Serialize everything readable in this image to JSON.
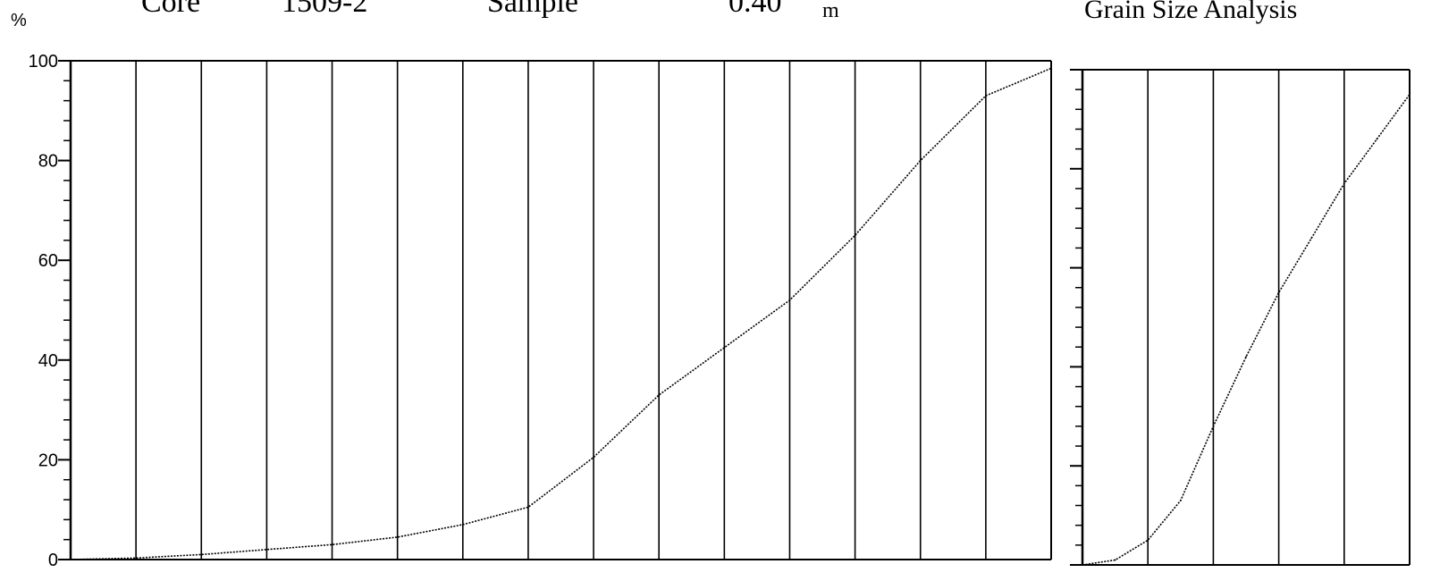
{
  "header": {
    "core_label": "Core",
    "core_value": "1509-2",
    "sample_label": "Sample",
    "depth_value": "0.40",
    "depth_unit": "m",
    "title": "Grain Size Analysis"
  },
  "chart_data": [
    {
      "type": "line",
      "title": "",
      "ylabel": "%",
      "xlabel": "",
      "ylim": [
        0,
        100
      ],
      "yticks": [
        "0",
        "20",
        "40",
        "60",
        "80",
        "100"
      ],
      "vertical_gridlines": 15,
      "x_divisions": 15,
      "x": [
        0.0,
        1.0,
        2.0,
        3.0,
        4.0,
        5.0,
        6.0,
        7.0,
        8.0,
        9.0,
        10.0,
        11.0,
        12.0,
        13.0,
        14.0,
        15.0
      ],
      "series": [
        {
          "values": [
            0,
            0.3,
            1.0,
            2.0,
            3.0,
            4.5,
            7.0,
            10.5,
            20.5,
            33.0,
            42.5,
            52.0,
            65.0,
            80.0,
            93.0,
            98.5
          ]
        }
      ],
      "line_color": "#000000"
    },
    {
      "type": "line",
      "title": "",
      "ylabel": "",
      "xlabel": "",
      "ylim": [
        0,
        100
      ],
      "yticks": [],
      "vertical_gridlines": 5,
      "x_divisions": 5,
      "x": [
        0.0,
        0.5,
        1.0,
        1.5,
        2.0,
        2.5,
        3.0,
        3.5,
        4.0,
        4.5,
        5.0
      ],
      "series": [
        {
          "values": [
            0,
            1.0,
            5.0,
            13.0,
            28.0,
            42.0,
            55.0,
            66.0,
            77.0,
            86.0,
            95.0
          ]
        }
      ],
      "line_color": "#000000"
    }
  ]
}
